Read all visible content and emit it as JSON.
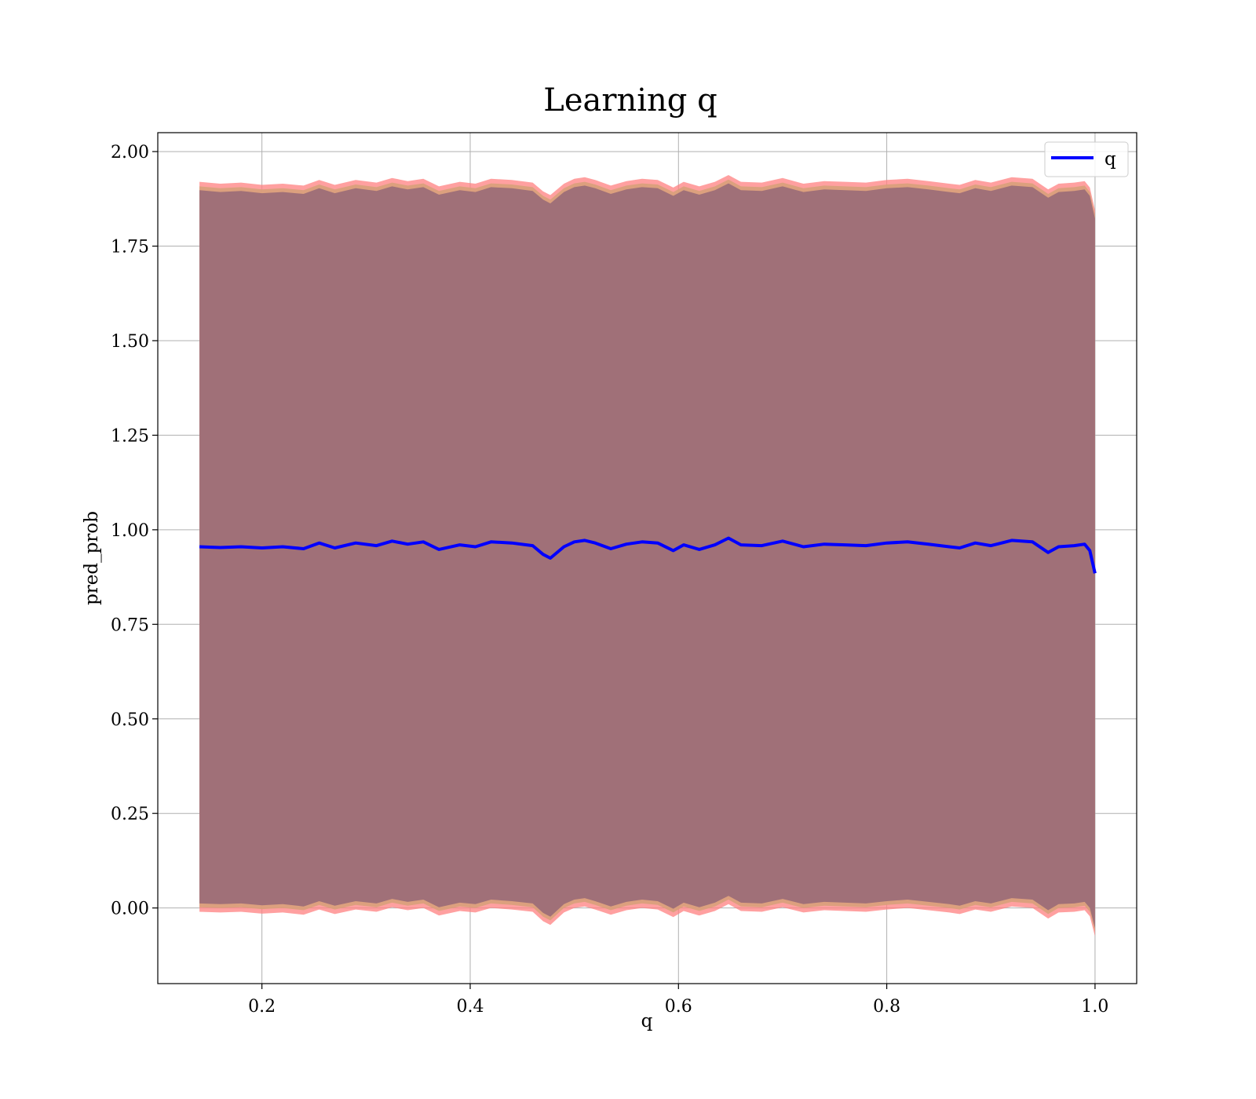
{
  "chart_data": {
    "type": "line",
    "title": "Learning q",
    "xlabel": "q",
    "ylabel": "pred_prob",
    "xlim": [
      0.1,
      1.04
    ],
    "ylim": [
      -0.2,
      2.05
    ],
    "xticks": [
      0.2,
      0.4,
      0.6,
      0.8,
      1.0
    ],
    "xtick_labels": [
      "0.2",
      "0.4",
      "0.6",
      "0.8",
      "1.0"
    ],
    "yticks": [
      0.0,
      0.25,
      0.5,
      0.75,
      1.0,
      1.25,
      1.5,
      1.75,
      2.0
    ],
    "ytick_labels": [
      "0.00",
      "0.25",
      "0.50",
      "0.75",
      "1.00",
      "1.25",
      "1.50",
      "1.75",
      "2.00"
    ],
    "grid": true,
    "legend": {
      "position": "top-right",
      "entries": [
        "q"
      ]
    },
    "colors": {
      "line": "#0000ff",
      "band_outer": "#ff8080",
      "band_mid": "#d8a07a",
      "band_inner": "#a07078"
    },
    "series": [
      {
        "name": "q",
        "x": [
          0.14,
          0.16,
          0.18,
          0.2,
          0.22,
          0.24,
          0.255,
          0.27,
          0.29,
          0.31,
          0.325,
          0.34,
          0.355,
          0.37,
          0.39,
          0.405,
          0.42,
          0.44,
          0.46,
          0.47,
          0.477,
          0.49,
          0.5,
          0.51,
          0.52,
          0.535,
          0.55,
          0.565,
          0.58,
          0.595,
          0.605,
          0.62,
          0.635,
          0.648,
          0.66,
          0.68,
          0.7,
          0.72,
          0.74,
          0.76,
          0.78,
          0.8,
          0.82,
          0.84,
          0.86,
          0.87,
          0.885,
          0.9,
          0.92,
          0.94,
          0.955,
          0.965,
          0.98,
          0.99,
          0.995,
          1.0
        ],
        "values": [
          0.955,
          0.953,
          0.955,
          0.952,
          0.955,
          0.95,
          0.965,
          0.952,
          0.965,
          0.958,
          0.97,
          0.962,
          0.968,
          0.948,
          0.96,
          0.955,
          0.968,
          0.965,
          0.958,
          0.935,
          0.925,
          0.955,
          0.968,
          0.972,
          0.965,
          0.95,
          0.962,
          0.968,
          0.965,
          0.945,
          0.96,
          0.948,
          0.96,
          0.978,
          0.96,
          0.958,
          0.97,
          0.955,
          0.962,
          0.96,
          0.958,
          0.965,
          0.968,
          0.962,
          0.955,
          0.952,
          0.965,
          0.958,
          0.972,
          0.968,
          0.94,
          0.955,
          0.958,
          0.962,
          0.945,
          0.885
        ]
      }
    ],
    "band": {
      "upper": [
        1.92,
        1.915,
        1.918,
        1.912,
        1.915,
        1.91,
        1.925,
        1.912,
        1.925,
        1.918,
        1.93,
        1.922,
        1.928,
        1.908,
        1.92,
        1.915,
        1.928,
        1.925,
        1.918,
        1.895,
        1.885,
        1.915,
        1.928,
        1.932,
        1.925,
        1.91,
        1.922,
        1.928,
        1.925,
        1.905,
        1.92,
        1.908,
        1.92,
        1.938,
        1.92,
        1.918,
        1.93,
        1.915,
        1.922,
        1.92,
        1.918,
        1.925,
        1.928,
        1.922,
        1.915,
        1.912,
        1.925,
        1.918,
        1.932,
        1.928,
        1.9,
        1.915,
        1.918,
        1.922,
        1.905,
        1.845
      ],
      "lower": [
        -0.01,
        -0.012,
        -0.01,
        -0.015,
        -0.012,
        -0.018,
        -0.004,
        -0.016,
        -0.004,
        -0.01,
        0.002,
        -0.006,
        0.0,
        -0.02,
        -0.008,
        -0.012,
        0.0,
        -0.004,
        -0.01,
        -0.035,
        -0.045,
        -0.012,
        0.0,
        0.004,
        -0.004,
        -0.018,
        -0.006,
        0.0,
        -0.004,
        -0.024,
        -0.008,
        -0.02,
        -0.008,
        0.01,
        -0.008,
        -0.01,
        0.002,
        -0.012,
        -0.006,
        -0.008,
        -0.01,
        -0.004,
        0.0,
        -0.006,
        -0.012,
        -0.016,
        -0.004,
        -0.01,
        0.004,
        0.0,
        -0.028,
        -0.012,
        -0.01,
        -0.006,
        -0.022,
        -0.075
      ]
    }
  }
}
